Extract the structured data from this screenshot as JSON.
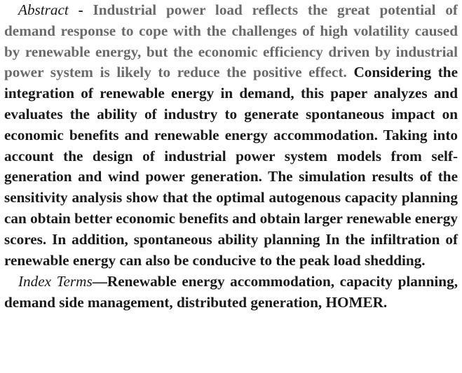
{
  "abstract": {
    "label": "Abstract",
    "separator": " - ",
    "faded_text": "Industrial power load reflects the great potential of demand response to cope with the challenges of high volatility caused by renewable energy, but the economic efficiency driven by industrial power system is likely to reduce the positive effect.",
    "body_text": " Considering the integration of renewable energy in demand, this paper analyzes and evaluates the ability of industry to generate spontaneous impact on economic benefits and renewable energy accommodation. Taking into account the design of industrial power system models from self-generation and wind power generation. The simulation results of the sensitivity analysis show that the optimal autogenous capacity planning can obtain better economic benefits and obtain larger renewable energy scores. In addition, spontaneous ability planning In the infiltration of renewable energy can also be conducive to the peak load shedding."
  },
  "index_terms": {
    "label": "Index Terms",
    "text": "—Renewable energy accommodation, capacity planning, demand side management, distributed generation, HOMER."
  }
}
